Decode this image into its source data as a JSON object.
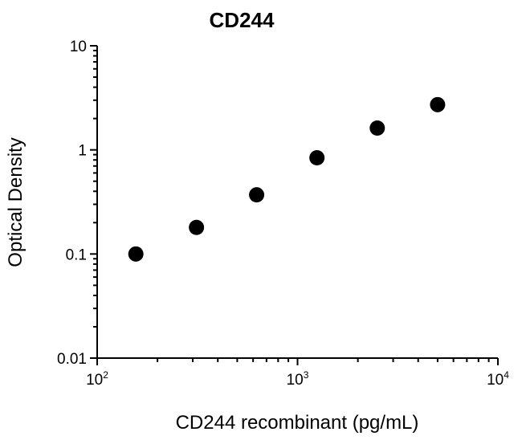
{
  "chart_data": {
    "type": "scatter",
    "title": "CD244",
    "xlabel": "CD244 recombinant (pg/mL)",
    "ylabel": "Optical Density",
    "x_scale": "log",
    "y_scale": "log",
    "xlim": [
      100,
      10000
    ],
    "ylim": [
      0.01,
      10
    ],
    "x_ticks": [
      {
        "base": "10",
        "exp": "2"
      },
      {
        "base": "10",
        "exp": "3"
      },
      {
        "base": "10",
        "exp": "4"
      }
    ],
    "y_ticks": [
      "10",
      "1",
      "0.1",
      "0.01"
    ],
    "y_tick_values": [
      10,
      1,
      0.1,
      0.01
    ],
    "x_tick_values": [
      100,
      1000,
      10000
    ],
    "grid": false,
    "legend": "none",
    "marker_color": "#000000",
    "series": [
      {
        "x": [
          156,
          313,
          625,
          1250,
          2500,
          5000
        ],
        "y": [
          0.1,
          0.18,
          0.37,
          0.84,
          1.62,
          2.72
        ]
      }
    ]
  }
}
